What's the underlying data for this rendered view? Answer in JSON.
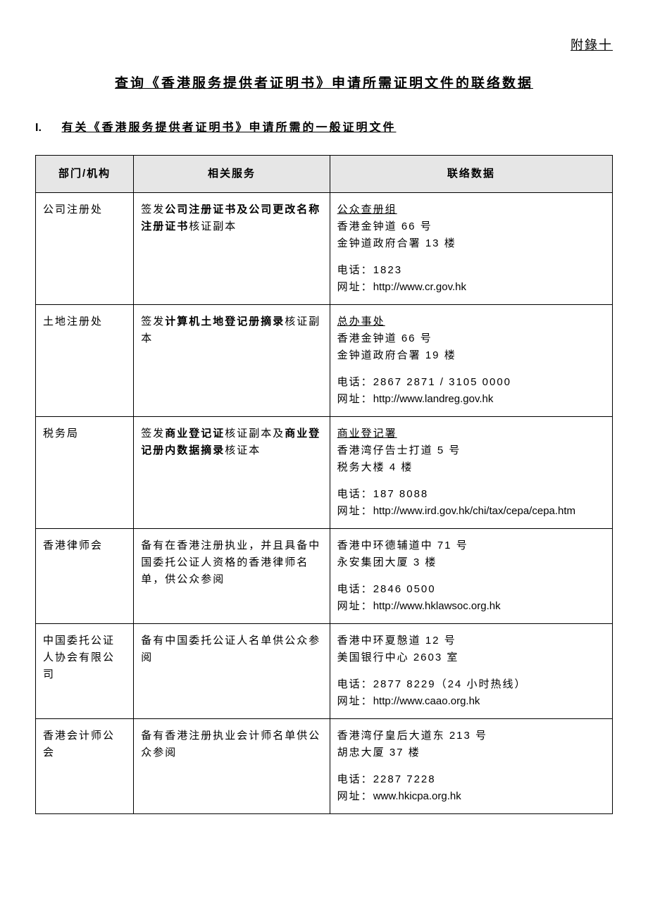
{
  "appendix_label": "附錄十",
  "page_title": "查询《香港服务提供者证明书》申请所需证明文件的联络数据",
  "section": {
    "number": "I.",
    "title": "有关《香港服务提供者证明书》申请所需的一般证明文件"
  },
  "table": {
    "headers": {
      "dept": "部门/机构",
      "service": "相关服务",
      "contact": "联络数据"
    },
    "rows": [
      {
        "dept": "公司注册处",
        "service_prefix": "签发",
        "service_bold": "公司注册证书及公司更改名称注册证书",
        "service_suffix": "核证副本",
        "contact": {
          "group": "公众查册组",
          "addr1": "香港金钟道 66 号",
          "addr2": "金钟道政府合署 13 楼",
          "tel_label": "电话：",
          "tel": "1823",
          "url_label": "网址：",
          "url": "http://www.cr.gov.hk"
        }
      },
      {
        "dept": "土地注册处",
        "service_prefix": "签发",
        "service_bold": "计算机土地登记册摘录",
        "service_suffix": "核证副本",
        "contact": {
          "group": "总办事处",
          "addr1": "香港金钟道 66 号",
          "addr2": "金钟道政府合署 19 楼",
          "tel_label": "电话：",
          "tel": "2867 2871 / 3105 0000",
          "url_label": "网址：",
          "url": "http://www.landreg.gov.hk"
        }
      },
      {
        "dept": "税务局",
        "service_prefix": "签发",
        "service_bold": "商业登记证",
        "service_mid": "核证副本及",
        "service_bold2": "商业登记册内数据摘录",
        "service_suffix": "核证本",
        "contact": {
          "group": "商业登记署",
          "addr1": "香港湾仔告士打道 5 号",
          "addr2": "税务大楼 4 楼",
          "tel_label": "电话：",
          "tel": "187 8088",
          "url_label": "网址：",
          "url": "http://www.ird.gov.hk/chi/tax/cepa/cepa.htm"
        }
      },
      {
        "dept": "香港律师会",
        "service_plain": "备有在香港注册执业，并且具备中国委托公证人资格的香港律师名单，供公众参阅",
        "contact": {
          "addr1": "香港中环德辅道中 71 号",
          "addr2": "永安集团大厦 3 楼",
          "tel_label": "电话：",
          "tel": "2846 0500",
          "url_label": "网址：",
          "url": "http://www.hklawsoc.org.hk"
        }
      },
      {
        "dept": "中国委托公证人协会有限公司",
        "service_plain": "备有中国委托公证人名单供公众参阅",
        "contact": {
          "addr1": "香港中环夏慤道 12 号",
          "addr2": "美国银行中心 2603 室",
          "tel_label": "电话：",
          "tel": "2877 8229（24 小时热线）",
          "url_label": "网址：",
          "url": "http://www.caao.org.hk"
        }
      },
      {
        "dept": "香港会计师公会",
        "service_plain": "备有香港注册执业会计师名单供公众参阅",
        "contact": {
          "addr1": "香港湾仔皇后大道东 213 号",
          "addr2": "胡忠大厦 37 楼",
          "tel_label": "电话：",
          "tel": "2287 7228",
          "url_label": "网址：",
          "url": "www.hkicpa.org.hk"
        }
      }
    ]
  }
}
